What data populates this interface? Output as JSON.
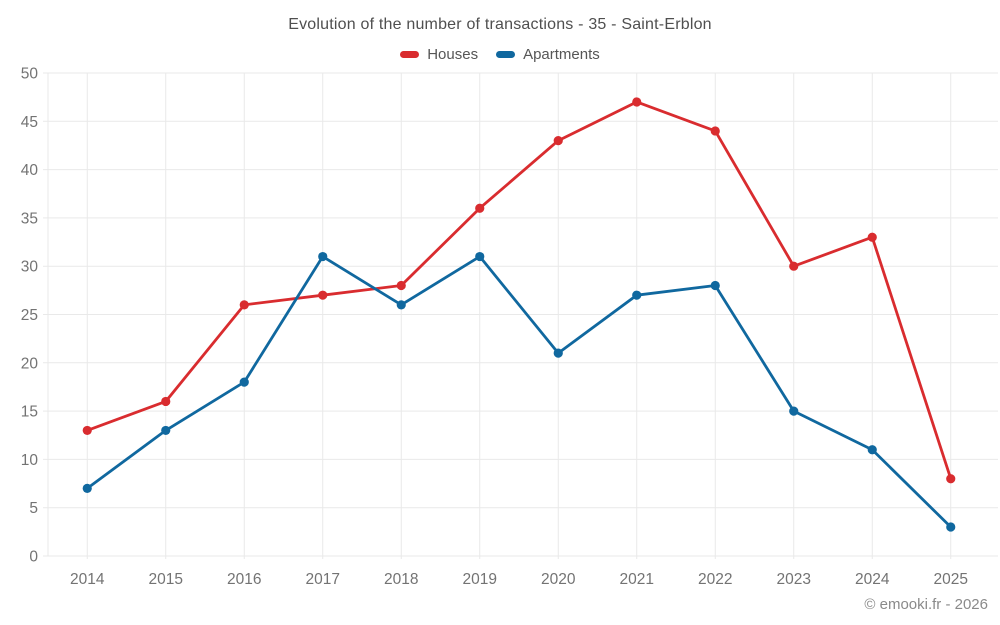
{
  "chart": {
    "title": "Evolution of the number of transactions - 35 - Saint-Erblon",
    "footer": "© emooki.fr - 2026"
  },
  "chart_data": {
    "type": "line",
    "title": "Evolution of the number of transactions - 35 - Saint-Erblon",
    "categories": [
      "2014",
      "2015",
      "2016",
      "2017",
      "2018",
      "2019",
      "2020",
      "2021",
      "2022",
      "2023",
      "2024",
      "2025"
    ],
    "series": [
      {
        "name": "Houses",
        "color": "#d92c2f",
        "values": [
          13,
          16,
          26,
          27,
          28,
          36,
          43,
          47,
          44,
          30,
          33,
          8
        ]
      },
      {
        "name": "Apartments",
        "color": "#10689f",
        "values": [
          7,
          13,
          18,
          31,
          26,
          31,
          21,
          27,
          28,
          15,
          11,
          3
        ]
      }
    ],
    "xlabel": "",
    "ylabel": "",
    "ylim": [
      0,
      50
    ],
    "ytick_step": 5,
    "yticks": [
      0,
      5,
      10,
      15,
      20,
      25,
      30,
      35,
      40,
      45,
      50
    ],
    "grid": true,
    "legend_position": "top",
    "marker": "circle",
    "line_width": 2.8,
    "marker_radius": 4.6
  },
  "style": {
    "background": "#ffffff",
    "grid_color": "#e9e9e9",
    "axis_label_color": "#737373",
    "title_color": "#4f4f4f",
    "legend_text_color": "#565656",
    "footer_color": "#8a8a8a"
  }
}
